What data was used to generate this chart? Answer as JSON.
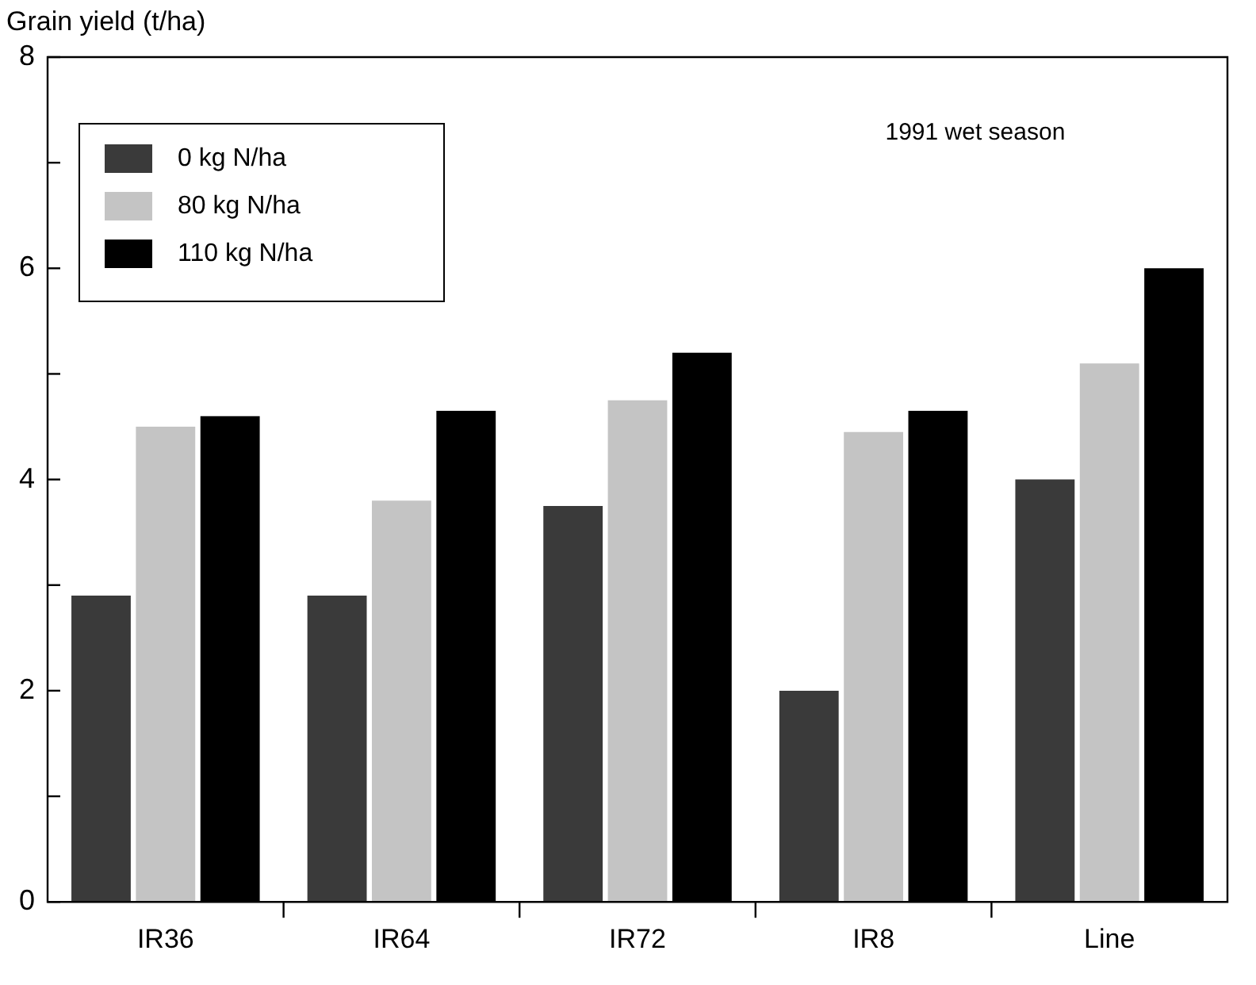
{
  "chart_data": {
    "type": "bar",
    "ylabel": "Grain yield (t/ha)",
    "categories": [
      "IR36",
      "IR64",
      "IR72",
      "IR8",
      "Line"
    ],
    "series": [
      {
        "name": "0 kg N/ha",
        "color": "#3a3a3a",
        "values": [
          2.9,
          2.9,
          3.75,
          2.0,
          4.0
        ]
      },
      {
        "name": "80 kg N/ha",
        "color": "#c4c4c4",
        "values": [
          4.5,
          3.8,
          4.75,
          4.45,
          5.1
        ]
      },
      {
        "name": "110 kg N/ha",
        "color": "#000000",
        "values": [
          4.6,
          4.65,
          5.2,
          4.65,
          6.0
        ]
      }
    ],
    "ylim": [
      0,
      8
    ],
    "yticks": [
      0,
      {
        "value": 1,
        "label": null
      },
      2,
      {
        "value": 3,
        "label": null
      },
      4,
      {
        "value": 5,
        "label": null
      },
      6,
      {
        "value": 7,
        "label": null
      },
      8
    ],
    "annotations": [
      "1991 wet season"
    ],
    "legend": "top left",
    "grid": false
  }
}
